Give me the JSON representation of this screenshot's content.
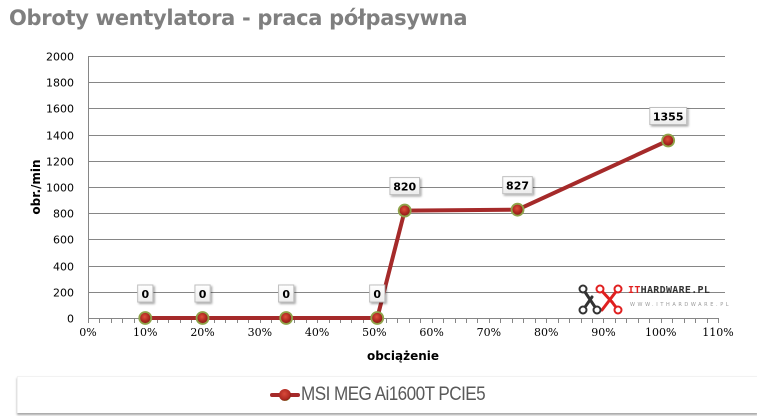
{
  "chart_data": {
    "type": "line",
    "title": "Obroty wentylatora - praca półpasywna",
    "xlabel": "obciążenie",
    "ylabel": "obr./min",
    "xlim": [
      0,
      110
    ],
    "ylim": [
      0,
      2000
    ],
    "x_ticks": [
      "0%",
      "10%",
      "20%",
      "30%",
      "40%",
      "50%",
      "60%",
      "70%",
      "80%",
      "90%",
      "100%",
      "110%"
    ],
    "y_ticks": [
      "0",
      "200",
      "400",
      "600",
      "800",
      "1000",
      "1200",
      "1400",
      "1600",
      "1800",
      "2000"
    ],
    "grid": {
      "horizontal": true,
      "vertical": false
    },
    "legend_position": "bottom",
    "series": [
      {
        "name": "MSI MEG Ai1600T PCIE5",
        "color": "#a52a2a",
        "marker_color": "#b02a22",
        "marker_edge": "#8fa34a",
        "x": [
          10,
          20,
          34.6,
          50.5,
          55.3,
          75,
          101.3
        ],
        "values": [
          0,
          0,
          0,
          0,
          820,
          827,
          1355
        ],
        "labels": [
          "0",
          "0",
          "0",
          "0",
          "820",
          "827",
          "1355"
        ]
      }
    ]
  },
  "title": "Obroty wentylatora - praca półpasywna",
  "axes": {
    "xlabel": "obciążenie",
    "ylabel": "obr./min"
  },
  "legend": {
    "label": "MSI MEG Ai1600T PCIE5"
  },
  "watermark": {
    "brand_it": "IT",
    "brand_rest": "HARDWARE.PL",
    "url": "WWW.ITHARDWARE.PL"
  }
}
